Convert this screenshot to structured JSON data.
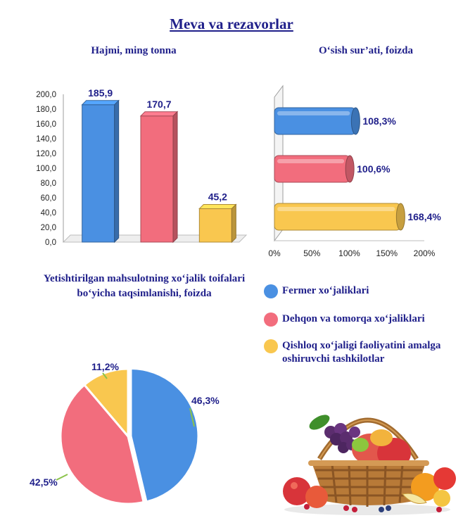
{
  "title": "Meva va rezavorlar",
  "colors": {
    "blue": "#4a90e2",
    "pink": "#f26d7d",
    "yellow": "#f9c74f",
    "label": "#1f1f8a"
  },
  "legend": [
    {
      "label": "Fermer xo‘jaliklari",
      "color": "#4a90e2"
    },
    {
      "label": "Dehqon va tomorqa xo‘jaliklari",
      "color": "#f26d7d"
    },
    {
      "label": "Qishloq xo‘jaligi faoliyatini amalga oshiruvchi tashkilotlar",
      "color": "#f9c74f"
    }
  ],
  "chart_data": [
    {
      "type": "bar",
      "title": "Hajmi, ming tonna",
      "categories": [
        "Fermer xo‘jaliklari",
        "Dehqon va tomorqa xo‘jaliklari",
        "Qishloq xo‘jaligi faoliyatini amalga oshiruvchi tashkilotlar"
      ],
      "values": [
        185.9,
        170.7,
        45.2
      ],
      "value_labels": [
        "185,9",
        "170,7",
        "45,2"
      ],
      "ylim": [
        0,
        200
      ],
      "yticks": [
        "0,0",
        "20,0",
        "40,0",
        "60,0",
        "80,0",
        "100,0",
        "120,0",
        "140,0",
        "160,0",
        "180,0",
        "200,0"
      ]
    },
    {
      "type": "bar",
      "orientation": "horizontal",
      "title": "O‘sish sur’ati, foizda",
      "categories": [
        "Fermer xo‘jaliklari",
        "Dehqon va tomorqa xo‘jaliklari",
        "Qishloq xo‘jaligi faoliyatini amalga oshiruvchi tashkilotlar"
      ],
      "values": [
        108.3,
        100.6,
        168.4
      ],
      "value_labels": [
        "108,3%",
        "100,6%",
        "168,4%"
      ],
      "xlim": [
        0,
        200
      ],
      "xticks": [
        "0%",
        "50%",
        "100%",
        "150%",
        "200%"
      ]
    },
    {
      "type": "pie",
      "title": "Yetishtirilgan mahsulotning xo‘jalik toifalari bo‘yicha taqsimlanishi, foizda",
      "categories": [
        "Fermer xo‘jaliklari",
        "Dehqon va tomorqa xo‘jaliklari",
        "Qishloq xo‘jaligi faoliyatini amalga oshiruvchi tashkilotlar"
      ],
      "values": [
        46.3,
        42.5,
        11.2
      ],
      "value_labels": [
        "46,3%",
        "42,5%",
        "11,2%"
      ]
    }
  ]
}
